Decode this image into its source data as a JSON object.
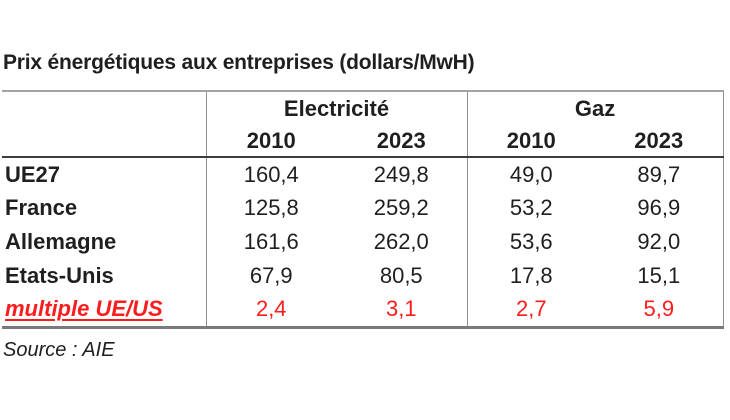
{
  "chart_data": {
    "type": "table",
    "title": "Prix énergétiques aux entreprises (dollars/MwH)",
    "source": "Source : AIE",
    "column_groups": [
      {
        "label": "Electricité",
        "years": [
          "2010",
          "2023"
        ]
      },
      {
        "label": "Gaz",
        "years": [
          "2010",
          "2023"
        ]
      }
    ],
    "columns": [
      "Electricité 2010",
      "Electricité 2023",
      "Gaz 2010",
      "Gaz 2023"
    ],
    "rows": [
      {
        "label": "UE27",
        "values": [
          "160,4",
          "249,8",
          "49,0",
          "89,7"
        ],
        "highlight": false
      },
      {
        "label": "France",
        "values": [
          "125,8",
          "259,2",
          "53,2",
          "96,9"
        ],
        "highlight": false
      },
      {
        "label": "Allemagne",
        "values": [
          "161,6",
          "262,0",
          "53,6",
          "92,0"
        ],
        "highlight": false
      },
      {
        "label": "Etats-Unis",
        "values": [
          "67,9",
          "80,5",
          "17,8",
          "15,1"
        ],
        "highlight": false
      },
      {
        "label": "multiple UE/US",
        "values": [
          "2,4",
          "3,1",
          "2,7",
          "5,9"
        ],
        "highlight": true
      }
    ]
  },
  "colors": {
    "text": "#1f1f1f",
    "highlight": "#fb1d1d",
    "border_top": "#a3a3a3",
    "border_header": "#3d3d3d",
    "border_bottom": "#7a7a7a",
    "border_vertical": "#8f8f8f"
  }
}
